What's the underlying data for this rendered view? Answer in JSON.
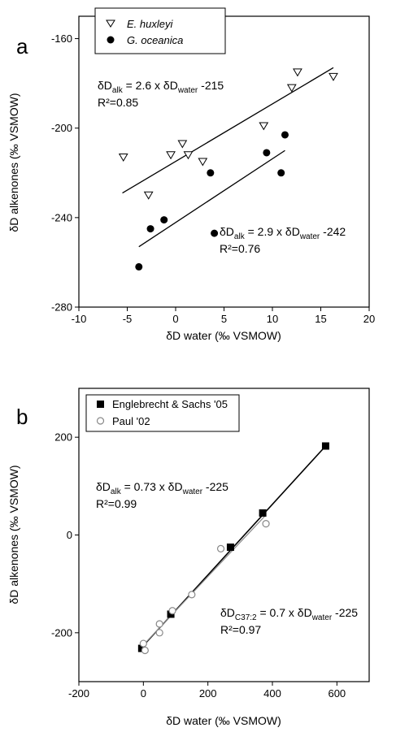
{
  "chart_data": [
    {
      "type": "scatter",
      "panel_label": "a",
      "xlabel": "δD water (‰ VSMOW)",
      "ylabel": "δD alkenones (‰ VSMOW)",
      "xlim": [
        -10,
        20
      ],
      "ylim": [
        -280,
        -150
      ],
      "xticks": [
        -10,
        -5,
        0,
        5,
        10,
        15,
        20
      ],
      "yticks": [
        -160,
        -200,
        -240,
        -280
      ],
      "legend_position": "top-left",
      "series": [
        {
          "name": "E. huxleyi",
          "marker": "open-triangle-down",
          "x": [
            -5.4,
            -2.8,
            -0.5,
            0.7,
            1.3,
            2.8,
            9.1,
            12,
            12.6,
            16.3
          ],
          "y": [
            -213,
            -230,
            -212,
            -207,
            -212,
            -215,
            -199,
            -182,
            -175,
            -177
          ],
          "fit": {
            "x": [
              -5.5,
              16.3
            ],
            "y": [
              -229,
              -173
            ]
          }
        },
        {
          "name": "G. oceanica",
          "marker": "filled-circle",
          "x": [
            -3.8,
            -2.6,
            -1.2,
            3.6,
            4.0,
            9.4,
            10.9,
            11.3
          ],
          "y": [
            -262,
            -245,
            -241,
            -220,
            -247,
            -211,
            -220,
            -203
          ],
          "fit": {
            "x": [
              -3.8,
              11.3
            ],
            "y": [
              -253,
              -210
            ]
          }
        }
      ],
      "annotations": [
        {
          "prefix": "δD",
          "sub1": "alk",
          "mid": " = 2.6 x δD",
          "sub2": "water",
          "suffix": " -215",
          "r2": "R²=0.85"
        },
        {
          "prefix": "δD",
          "sub1": "alk",
          "mid": " = 2.9 x δD",
          "sub2": "water",
          "suffix": " -242",
          "r2": "R²=0.76"
        }
      ]
    },
    {
      "type": "scatter",
      "panel_label": "b",
      "xlabel": "δD water (‰ VSMOW)",
      "ylabel": "δD alkenones (‰ VSMOW)",
      "xlim": [
        -200,
        700
      ],
      "ylim": [
        -300,
        300
      ],
      "xticks": [
        -200,
        0,
        200,
        400,
        600
      ],
      "yticks": [
        200,
        0,
        -200
      ],
      "legend_position": "top-left",
      "series": [
        {
          "name": "Englebrecht & Sachs '05",
          "marker": "filled-square",
          "x": [
            -5,
            85,
            270,
            370,
            565
          ],
          "y": [
            -232,
            -162,
            -25,
            45,
            182
          ],
          "fit": {
            "x": [
              -5,
              565
            ],
            "y": [
              -230,
              182
            ]
          }
        },
        {
          "name": "Paul '02",
          "marker": "open-circle",
          "x": [
            0,
            5,
            50,
            50,
            90,
            150,
            240,
            380
          ],
          "y": [
            -222,
            -236,
            -182,
            -200,
            -155,
            -122,
            -28,
            23
          ],
          "fit": {
            "x": [
              0,
              380
            ],
            "y": [
              -225,
              41
            ]
          }
        }
      ],
      "annotations": [
        {
          "prefix": "δD",
          "sub1": "alk",
          "mid": " = 0.73 x δD",
          "sub2": "water",
          "suffix": " -225",
          "r2": "R²=0.99"
        },
        {
          "prefix": "δD",
          "sub1": "C37:2",
          "mid": " = 0.7 x δD",
          "sub2": "water",
          "suffix": " -225",
          "r2": "R²=0.97"
        }
      ]
    }
  ]
}
